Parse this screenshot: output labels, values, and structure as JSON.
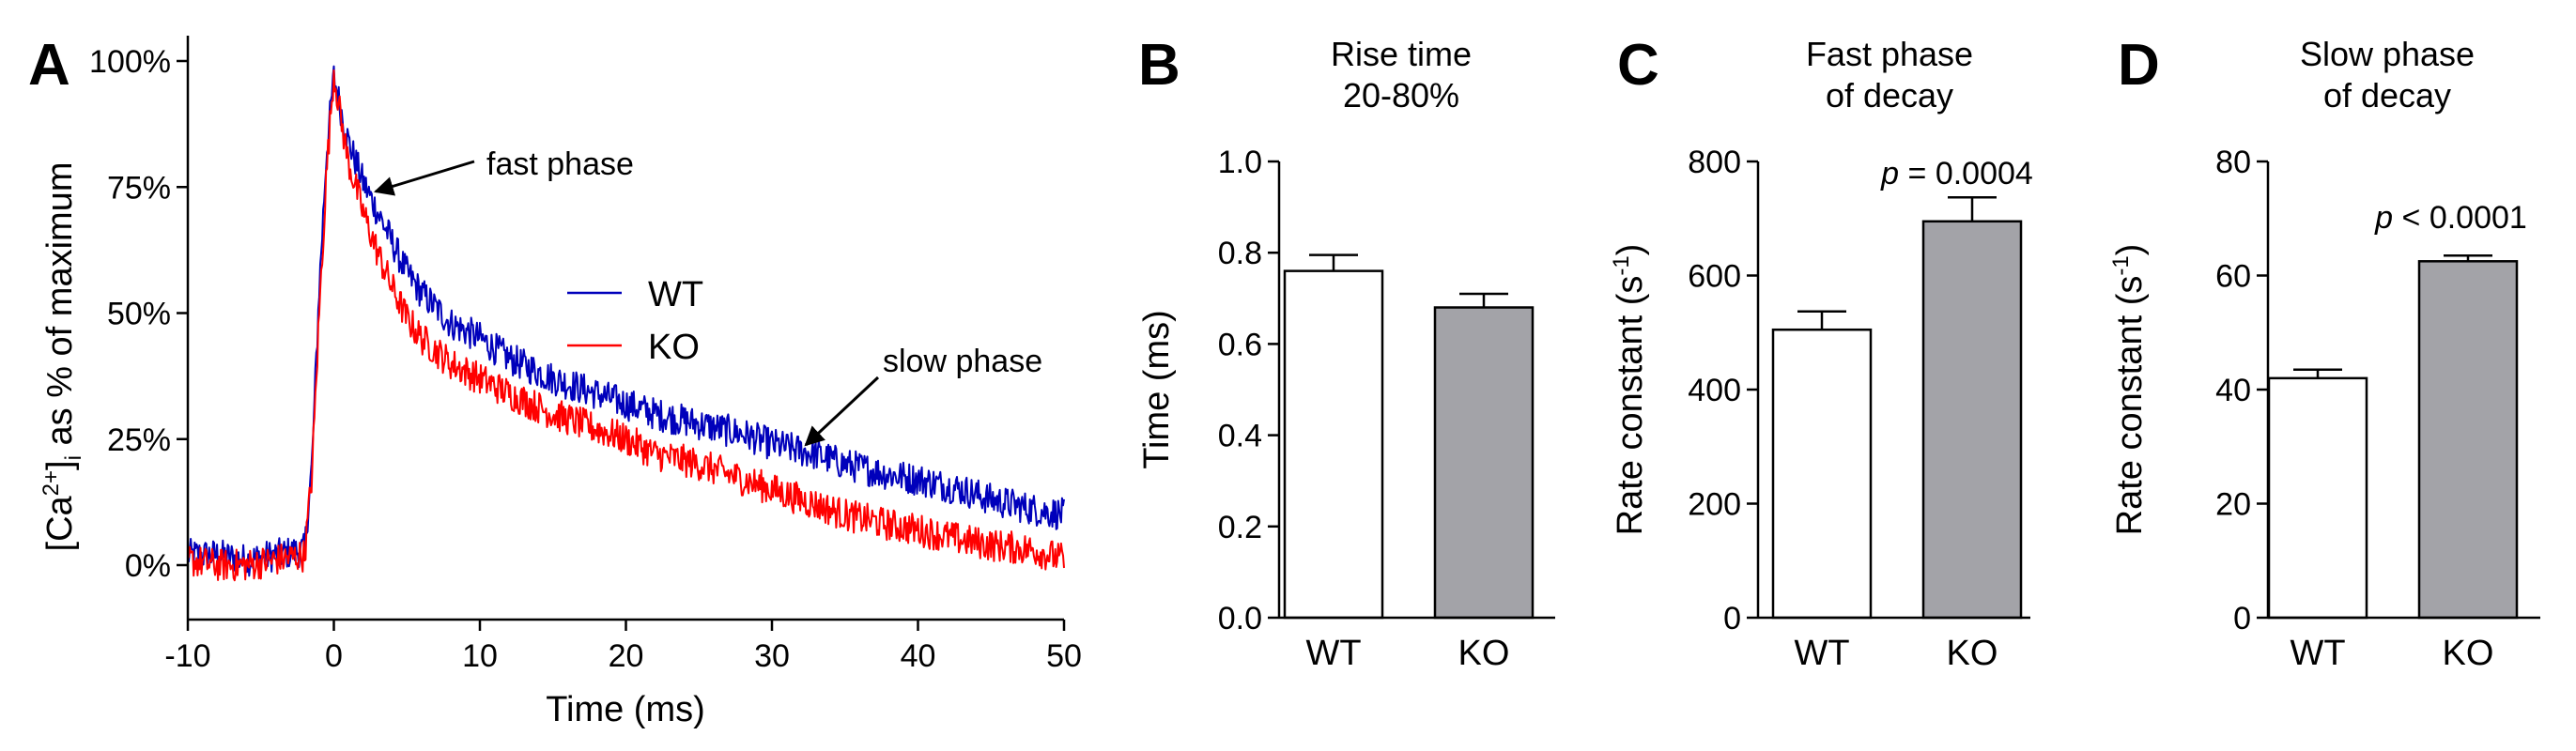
{
  "chart_data": [
    {
      "panel": "A",
      "type": "line",
      "xlabel": "Time (ms)",
      "ylabel": {
        "prefix": "[Ca",
        "sup": "2+",
        "close": "]",
        "sub": "i",
        "suffix": " as % of maximum"
      },
      "xlim": [
        -10,
        50
      ],
      "ylim": [
        -10,
        100
      ],
      "xticks": [
        -10,
        0,
        10,
        20,
        30,
        40,
        50
      ],
      "xtick_labels": [
        "-10",
        "0",
        "10",
        "20",
        "30",
        "40",
        "50"
      ],
      "yticks": [
        0,
        25,
        50,
        75,
        100
      ],
      "ytick_labels": [
        "0%",
        "25%",
        "50%",
        "75%",
        "100%"
      ],
      "legend": {
        "placement": "center-right",
        "entries": [
          "WT",
          "KO"
        ]
      },
      "annotations": [
        {
          "text": "fast phase",
          "target": [
            2.8,
            75
          ]
        },
        {
          "text": "slow phase",
          "target": [
            32,
            23
          ]
        }
      ],
      "series": [
        {
          "name": "WT",
          "color": "#0000bb",
          "x": [
            -10,
            -8,
            -6,
            -4,
            -2,
            -1.5,
            -1,
            -0.5,
            0,
            0.5,
            1,
            1.5,
            2,
            3,
            4,
            5,
            6,
            8,
            10,
            12,
            15,
            18,
            20,
            22,
            25,
            28,
            30,
            33,
            35,
            38,
            40,
            43,
            45,
            48,
            50
          ],
          "y": [
            2,
            2,
            1,
            2,
            3,
            20,
            55,
            82,
            97,
            90,
            84,
            80,
            76,
            70,
            64,
            58,
            54,
            48,
            45,
            41,
            37,
            34,
            32,
            30,
            28,
            26,
            24,
            22,
            20,
            18,
            17,
            15,
            13,
            11,
            10
          ]
        },
        {
          "name": "KO",
          "color": "#ff0000",
          "x": [
            -10,
            -8,
            -6,
            -4,
            -2,
            -1.5,
            -1,
            -0.5,
            0,
            0.5,
            1,
            1.5,
            2,
            3,
            4,
            5,
            6,
            8,
            10,
            12,
            15,
            18,
            20,
            22,
            25,
            28,
            30,
            33,
            35,
            38,
            40,
            43,
            45,
            48,
            50
          ],
          "y": [
            1,
            0,
            0,
            1,
            2,
            18,
            50,
            78,
            98,
            88,
            80,
            75,
            70,
            62,
            55,
            49,
            45,
            40,
            37,
            34,
            30,
            27,
            25,
            22,
            20,
            17,
            15,
            12,
            10,
            8,
            7,
            5,
            4,
            3,
            1
          ]
        }
      ]
    },
    {
      "panel": "B",
      "type": "bar",
      "title": [
        "Rise time",
        "20-80%"
      ],
      "ylabel": "Time (ms)",
      "ylim": [
        0,
        1.0
      ],
      "yticks": [
        0,
        0.2,
        0.4,
        0.6,
        0.8,
        1.0
      ],
      "ytick_labels": [
        "0.0",
        "0.2",
        "0.4",
        "0.6",
        "0.8",
        "1.0"
      ],
      "categories": [
        "WT",
        "KO"
      ],
      "values": [
        0.76,
        0.68
      ],
      "errors": [
        0.035,
        0.03
      ],
      "colors": [
        "#ffffff",
        "#a3a3a8"
      ],
      "pvalue": ""
    },
    {
      "panel": "C",
      "type": "bar",
      "title": [
        "Fast phase",
        "of decay"
      ],
      "ylabel": {
        "text": "Rate constant (s",
        "sup": "-1",
        "close": ")"
      },
      "ylim": [
        0,
        800
      ],
      "yticks": [
        0,
        200,
        400,
        600,
        800
      ],
      "ytick_labels": [
        "0",
        "200",
        "400",
        "600",
        "800"
      ],
      "categories": [
        "WT",
        "KO"
      ],
      "values": [
        505,
        695
      ],
      "errors": [
        32,
        42
      ],
      "colors": [
        "#ffffff",
        "#a3a3a8"
      ],
      "pvalue": {
        "italic": "p",
        "rest": " = 0.0004"
      }
    },
    {
      "panel": "D",
      "type": "bar",
      "title": [
        "Slow phase",
        "of decay"
      ],
      "ylabel": {
        "text": "Rate constant (s",
        "sup": "-1",
        "close": ")"
      },
      "ylim": [
        0,
        80
      ],
      "yticks": [
        0,
        20,
        40,
        60,
        80
      ],
      "ytick_labels": [
        "0",
        "20",
        "40",
        "60",
        "80"
      ],
      "categories": [
        "WT",
        "KO"
      ],
      "values": [
        42,
        62.5
      ],
      "errors": [
        1.5,
        1.0
      ],
      "colors": [
        "#ffffff",
        "#a3a3a8"
      ],
      "pvalue": {
        "italic": "p",
        "rest": " < 0.0001"
      }
    }
  ]
}
